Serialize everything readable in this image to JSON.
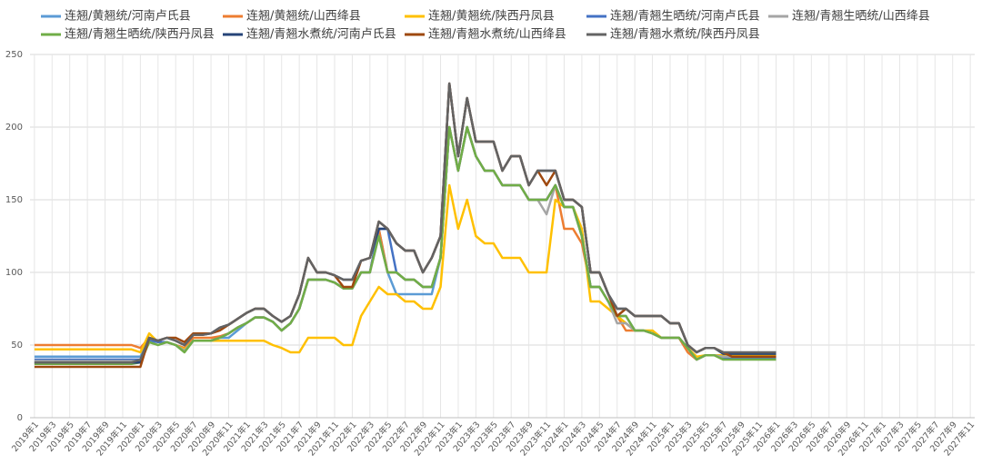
{
  "chart_data": {
    "type": "line",
    "categories": [
      "2019年1",
      null,
      "2019年3",
      null,
      "2019年5",
      null,
      "2019年7",
      null,
      "2019年9",
      null,
      "2019年11",
      null,
      "2020年1",
      null,
      "2020年3",
      null,
      "2020年5",
      null,
      "2020年7",
      null,
      "2020年9",
      null,
      "2020年11",
      null,
      "2021年1",
      null,
      "2021年3",
      null,
      "2021年5",
      null,
      "2021年7",
      null,
      "2021年9",
      null,
      "2021年11",
      null,
      "2022年1",
      null,
      "2022年3",
      null,
      "2022年5",
      null,
      "2022年7",
      null,
      "2022年9",
      null,
      "2022年11",
      null,
      "2023年1",
      null,
      "2023年3",
      null,
      "2023年5",
      null,
      "2023年7",
      null,
      "2023年9",
      null,
      "2023年11",
      null,
      "2024年1",
      null,
      "2024年3",
      null,
      "2024年5",
      null,
      "2024年7",
      null,
      "2024年9",
      null,
      "2024年11",
      null,
      "2025年1",
      null,
      "2025年3",
      null,
      "2025年5",
      null,
      "2025年7",
      null,
      "2025年9",
      null,
      "2025年11",
      null,
      "2026年1",
      null,
      "2026年3",
      null,
      "2026年5",
      null,
      "2026年7",
      null,
      "2026年9",
      null,
      "2026年11",
      null,
      "2027年1",
      null,
      "2027年3",
      null,
      "2027年5",
      null,
      "2027年7",
      null,
      "2027年9",
      null,
      "2027年11"
    ],
    "ylim": [
      0,
      250
    ],
    "yticks": [
      0,
      50,
      100,
      150,
      200,
      250
    ],
    "grid": true,
    "series": [
      {
        "name": "连翘/黄翘统/河南卢氏县",
        "color": "#5b9bd5",
        "values": [
          42,
          42,
          42,
          42,
          42,
          42,
          42,
          42,
          42,
          42,
          42,
          42,
          42,
          54,
          52,
          52,
          50,
          48,
          53,
          53,
          53,
          55,
          55,
          60,
          65,
          69,
          69,
          66,
          60,
          65,
          75,
          95,
          95,
          95,
          93,
          89,
          89,
          100,
          100,
          130,
          100,
          85,
          85,
          85,
          85,
          85,
          110,
          200,
          170,
          200,
          180,
          170,
          170,
          160,
          160,
          160,
          150,
          150,
          150,
          160,
          145,
          145,
          125,
          90,
          90,
          80,
          70,
          65,
          60,
          60,
          58,
          55,
          55,
          55,
          48,
          40,
          43,
          43,
          42,
          42,
          42,
          42,
          42,
          42,
          42,
          null,
          null,
          null,
          null,
          null,
          null,
          null,
          null,
          null,
          null,
          null,
          null,
          null,
          null,
          null,
          null,
          null,
          null,
          null,
          null,
          null,
          null
        ]
      },
      {
        "name": "连翘/黄翘统/山西绛县",
        "color": "#ed7d31",
        "values": [
          50,
          50,
          50,
          50,
          50,
          50,
          50,
          50,
          50,
          50,
          50,
          50,
          48,
          55,
          52,
          52,
          50,
          48,
          55,
          55,
          55,
          56,
          58,
          62,
          65,
          69,
          69,
          66,
          60,
          65,
          75,
          95,
          95,
          95,
          93,
          89,
          89,
          100,
          100,
          130,
          100,
          100,
          95,
          95,
          90,
          90,
          110,
          200,
          170,
          200,
          180,
          170,
          170,
          160,
          160,
          160,
          150,
          150,
          150,
          160,
          130,
          130,
          120,
          90,
          90,
          80,
          70,
          60,
          60,
          60,
          58,
          55,
          55,
          55,
          45,
          40,
          43,
          43,
          43,
          43,
          43,
          43,
          43,
          43,
          43,
          null,
          null,
          null,
          null,
          null,
          null,
          null,
          null,
          null,
          null,
          null,
          null,
          null,
          null,
          null,
          null,
          null,
          null,
          null,
          null,
          null,
          null
        ]
      },
      {
        "name": "连翘/黄翘统/陕西丹凤县",
        "color": "#ffc000",
        "values": [
          47,
          47,
          47,
          47,
          47,
          47,
          47,
          47,
          47,
          47,
          47,
          47,
          45,
          58,
          52,
          52,
          50,
          47,
          53,
          53,
          53,
          53,
          53,
          53,
          53,
          53,
          53,
          50,
          48,
          45,
          45,
          55,
          55,
          55,
          55,
          50,
          50,
          70,
          80,
          90,
          85,
          85,
          80,
          80,
          75,
          75,
          90,
          160,
          130,
          150,
          125,
          120,
          120,
          110,
          110,
          110,
          100,
          100,
          100,
          150,
          145,
          145,
          130,
          80,
          80,
          75,
          70,
          65,
          60,
          60,
          60,
          55,
          55,
          55,
          48,
          42,
          43,
          43,
          43,
          43,
          43,
          43,
          43,
          43,
          43,
          null,
          null,
          null,
          null,
          null,
          null,
          null,
          null,
          null,
          null,
          null,
          null,
          null,
          null,
          null,
          null,
          null,
          null,
          null,
          null,
          null,
          null
        ]
      },
      {
        "name": "连翘/青翘生晒统/河南卢氏县",
        "color": "#4472c4",
        "values": [
          40,
          40,
          40,
          40,
          40,
          40,
          40,
          40,
          40,
          40,
          40,
          40,
          40,
          53,
          52,
          52,
          50,
          46,
          53,
          53,
          53,
          55,
          58,
          62,
          65,
          69,
          69,
          66,
          60,
          65,
          75,
          95,
          95,
          95,
          93,
          89,
          89,
          100,
          100,
          130,
          130,
          100,
          95,
          95,
          90,
          90,
          110,
          200,
          170,
          200,
          180,
          170,
          170,
          160,
          160,
          160,
          150,
          150,
          150,
          160,
          145,
          145,
          125,
          90,
          90,
          80,
          70,
          70,
          60,
          60,
          58,
          55,
          55,
          55,
          48,
          40,
          43,
          43,
          41,
          41,
          41,
          41,
          41,
          41,
          41,
          null,
          null,
          null,
          null,
          null,
          null,
          null,
          null,
          null,
          null,
          null,
          null,
          null,
          null,
          null,
          null,
          null,
          null,
          null,
          null,
          null,
          null
        ]
      },
      {
        "name": "连翘/青翘生晒统/山西绛县",
        "color": "#a5a5a5",
        "values": [
          39,
          39,
          39,
          39,
          39,
          39,
          39,
          39,
          39,
          39,
          39,
          39,
          39,
          52,
          50,
          52,
          50,
          46,
          53,
          53,
          53,
          55,
          58,
          62,
          65,
          69,
          69,
          66,
          60,
          65,
          75,
          95,
          95,
          95,
          93,
          89,
          89,
          100,
          100,
          125,
          100,
          100,
          95,
          95,
          90,
          90,
          110,
          200,
          170,
          200,
          180,
          170,
          170,
          160,
          160,
          160,
          150,
          150,
          140,
          160,
          145,
          145,
          125,
          90,
          90,
          80,
          65,
          65,
          60,
          60,
          58,
          55,
          55,
          55,
          48,
          40,
          43,
          43,
          42,
          42,
          42,
          42,
          42,
          42,
          42,
          null,
          null,
          null,
          null,
          null,
          null,
          null,
          null,
          null,
          null,
          null,
          null,
          null,
          null,
          null,
          null,
          null,
          null,
          null,
          null,
          null,
          null
        ]
      },
      {
        "name": "连翘/青翘生晒统/陕西丹凤县",
        "color": "#70ad47",
        "values": [
          37,
          37,
          37,
          37,
          37,
          37,
          37,
          37,
          37,
          37,
          37,
          37,
          38,
          52,
          50,
          52,
          50,
          45,
          53,
          53,
          53,
          55,
          58,
          62,
          65,
          69,
          69,
          66,
          60,
          65,
          75,
          95,
          95,
          95,
          93,
          89,
          89,
          100,
          100,
          125,
          100,
          100,
          95,
          95,
          90,
          90,
          110,
          200,
          170,
          200,
          180,
          170,
          170,
          160,
          160,
          160,
          150,
          150,
          150,
          160,
          145,
          145,
          125,
          90,
          90,
          80,
          70,
          70,
          60,
          60,
          58,
          55,
          55,
          55,
          48,
          40,
          43,
          43,
          40,
          40,
          40,
          40,
          40,
          40,
          40,
          null,
          null,
          null,
          null,
          null,
          null,
          null,
          null,
          null,
          null,
          null,
          null,
          null,
          null,
          null,
          null,
          null,
          null,
          null,
          null,
          null,
          null
        ]
      },
      {
        "name": "连翘/青翘水煮统/河南卢氏县",
        "color": "#264478",
        "values": [
          38,
          38,
          38,
          38,
          38,
          38,
          38,
          38,
          38,
          38,
          38,
          38,
          38,
          55,
          53,
          55,
          53,
          50,
          57,
          57,
          58,
          62,
          64,
          68,
          72,
          75,
          75,
          70,
          66,
          70,
          85,
          110,
          100,
          100,
          98,
          95,
          95,
          108,
          110,
          130,
          130,
          120,
          115,
          115,
          100,
          110,
          125,
          230,
          180,
          220,
          190,
          190,
          190,
          170,
          180,
          180,
          160,
          170,
          170,
          170,
          150,
          150,
          145,
          100,
          100,
          85,
          75,
          75,
          70,
          70,
          70,
          70,
          65,
          65,
          50,
          45,
          48,
          48,
          44,
          44,
          44,
          44,
          44,
          44,
          44,
          null,
          null,
          null,
          null,
          null,
          null,
          null,
          null,
          null,
          null,
          null,
          null,
          null,
          null,
          null,
          null,
          null,
          null,
          null,
          null,
          null,
          null
        ]
      },
      {
        "name": "连翘/青翘水煮统/山西绛县",
        "color": "#9e480e",
        "values": [
          35,
          35,
          35,
          35,
          35,
          35,
          35,
          35,
          35,
          35,
          35,
          35,
          35,
          55,
          53,
          55,
          55,
          52,
          58,
          58,
          58,
          60,
          64,
          68,
          72,
          75,
          75,
          70,
          66,
          70,
          85,
          110,
          100,
          100,
          98,
          90,
          90,
          108,
          110,
          135,
          130,
          120,
          115,
          115,
          100,
          110,
          125,
          230,
          180,
          220,
          190,
          190,
          190,
          170,
          180,
          180,
          160,
          170,
          160,
          170,
          150,
          150,
          145,
          100,
          100,
          85,
          70,
          75,
          70,
          70,
          70,
          70,
          65,
          65,
          50,
          45,
          48,
          48,
          45,
          42,
          42,
          42,
          42,
          42,
          42,
          null,
          null,
          null,
          null,
          null,
          null,
          null,
          null,
          null,
          null,
          null,
          null,
          null,
          null,
          null,
          null,
          null,
          null,
          null,
          null,
          null,
          null
        ]
      },
      {
        "name": "连翘/青翘水煮统/陕西丹凤县",
        "color": "#636363",
        "values": [
          38,
          38,
          38,
          38,
          38,
          38,
          38,
          38,
          38,
          38,
          38,
          38,
          40,
          55,
          53,
          55,
          53,
          50,
          57,
          57,
          58,
          62,
          64,
          68,
          72,
          75,
          75,
          70,
          66,
          70,
          85,
          110,
          100,
          100,
          98,
          95,
          95,
          108,
          110,
          135,
          130,
          120,
          115,
          115,
          100,
          110,
          125,
          230,
          180,
          220,
          190,
          190,
          190,
          170,
          180,
          180,
          160,
          170,
          170,
          170,
          150,
          150,
          145,
          100,
          100,
          85,
          75,
          75,
          70,
          70,
          70,
          70,
          65,
          65,
          50,
          45,
          48,
          48,
          45,
          45,
          45,
          45,
          45,
          45,
          45,
          null,
          null,
          null,
          null,
          null,
          null,
          null,
          null,
          null,
          null,
          null,
          null,
          null,
          null,
          null,
          null,
          null,
          null,
          null,
          null,
          null,
          null
        ]
      }
    ]
  }
}
